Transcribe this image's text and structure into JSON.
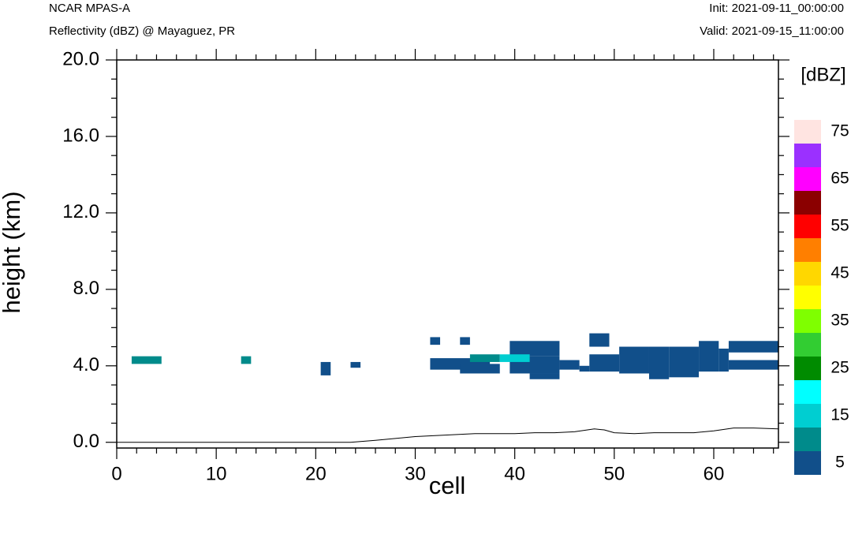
{
  "header": {
    "model": "NCAR MPAS-A",
    "field": "Reflectivity (dBZ) @ Mayaguez, PR",
    "init": "Init: 2021-09-11_00:00:00",
    "valid": "Valid: 2021-09-15_11:00:00"
  },
  "chart_data": {
    "type": "heatmap",
    "xlabel": "cell",
    "ylabel": "height (km)",
    "xlim": [
      0,
      66.5
    ],
    "ylim": [
      -0.3,
      20.0
    ],
    "x_ticks": [
      0,
      10,
      20,
      30,
      40,
      50,
      60
    ],
    "y_ticks": [
      0.0,
      4.0,
      8.0,
      12.0,
      16.0,
      20.0
    ],
    "y_tick_labels": [
      "0.0",
      "4.0",
      "8.0",
      "12.0",
      "16.0",
      "20.0"
    ],
    "colorbar": {
      "unit": "[dBZ]",
      "levels": [
        5,
        10,
        15,
        20,
        25,
        30,
        35,
        40,
        45,
        50,
        55,
        60,
        65,
        70,
        75
      ],
      "colors": [
        "#114f8a",
        "#008b8b",
        "#00ced1",
        "#00ffff",
        "#008b00",
        "#32cd32",
        "#7fff00",
        "#ffff00",
        "#ffd700",
        "#ff7f00",
        "#ff0000",
        "#8b0000",
        "#ff00ff",
        "#9b30ff",
        "#ffe4e1"
      ],
      "tick_labels": [
        "5",
        "15",
        "25",
        "35",
        "45",
        "55",
        "65",
        "75"
      ]
    },
    "cells": [
      {
        "x0": 1.5,
        "x1": 4.5,
        "y0": 4.1,
        "y1": 4.5,
        "dbz": 10
      },
      {
        "x0": 12.5,
        "x1": 13.5,
        "y0": 4.1,
        "y1": 4.5,
        "dbz": 10
      },
      {
        "x0": 20.5,
        "x1": 21.5,
        "y0": 3.5,
        "y1": 4.2,
        "dbz": 5
      },
      {
        "x0": 23.5,
        "x1": 24.5,
        "y0": 3.9,
        "y1": 4.2,
        "dbz": 5
      },
      {
        "x0": 31.5,
        "x1": 32.5,
        "y0": 5.1,
        "y1": 5.5,
        "dbz": 5
      },
      {
        "x0": 34.5,
        "x1": 35.5,
        "y0": 5.1,
        "y1": 5.5,
        "dbz": 5
      },
      {
        "x0": 31.5,
        "x1": 37.5,
        "y0": 3.8,
        "y1": 4.4,
        "dbz": 5
      },
      {
        "x0": 34.5,
        "x1": 38.5,
        "y0": 3.6,
        "y1": 4.1,
        "dbz": 5
      },
      {
        "x0": 39.5,
        "x1": 44.5,
        "y0": 4.5,
        "y1": 5.3,
        "dbz": 5
      },
      {
        "x0": 39.5,
        "x1": 44.5,
        "y0": 3.6,
        "y1": 4.5,
        "dbz": 5
      },
      {
        "x0": 41.5,
        "x1": 44.5,
        "y0": 3.3,
        "y1": 3.6,
        "dbz": 5
      },
      {
        "x0": 44.5,
        "x1": 46.5,
        "y0": 3.8,
        "y1": 4.3,
        "dbz": 5
      },
      {
        "x0": 46.5,
        "x1": 47.5,
        "y0": 3.7,
        "y1": 4.0,
        "dbz": 5
      },
      {
        "x0": 47.5,
        "x1": 49.5,
        "y0": 5.0,
        "y1": 5.7,
        "dbz": 5
      },
      {
        "x0": 47.5,
        "x1": 50.5,
        "y0": 3.7,
        "y1": 4.6,
        "dbz": 5
      },
      {
        "x0": 50.5,
        "x1": 53.5,
        "y0": 3.6,
        "y1": 5.0,
        "dbz": 5
      },
      {
        "x0": 53.5,
        "x1": 55.5,
        "y0": 3.3,
        "y1": 5.0,
        "dbz": 5
      },
      {
        "x0": 55.5,
        "x1": 58.5,
        "y0": 3.4,
        "y1": 5.0,
        "dbz": 5
      },
      {
        "x0": 58.5,
        "x1": 60.5,
        "y0": 3.7,
        "y1": 5.3,
        "dbz": 5
      },
      {
        "x0": 60.5,
        "x1": 61.5,
        "y0": 3.7,
        "y1": 4.9,
        "dbz": 5
      },
      {
        "x0": 61.5,
        "x1": 66.5,
        "y0": 3.8,
        "y1": 4.3,
        "dbz": 5
      },
      {
        "x0": 61.5,
        "x1": 66.5,
        "y0": 4.7,
        "y1": 5.3,
        "dbz": 5
      },
      {
        "x0": 35.5,
        "x1": 38.5,
        "y0": 4.2,
        "y1": 4.6,
        "dbz": 10
      },
      {
        "x0": 38.5,
        "x1": 41.5,
        "y0": 4.2,
        "y1": 4.6,
        "dbz": 15
      }
    ],
    "terrain": {
      "x": [
        0,
        23.5,
        26,
        28,
        30,
        32,
        34,
        36,
        38,
        40,
        42,
        44,
        46,
        48,
        49,
        50,
        52,
        54,
        56,
        58,
        60,
        62,
        64,
        66.5
      ],
      "y": [
        0,
        0,
        0.1,
        0.2,
        0.3,
        0.35,
        0.4,
        0.45,
        0.45,
        0.45,
        0.5,
        0.5,
        0.55,
        0.7,
        0.65,
        0.5,
        0.45,
        0.5,
        0.5,
        0.5,
        0.6,
        0.75,
        0.75,
        0.7
      ]
    }
  }
}
